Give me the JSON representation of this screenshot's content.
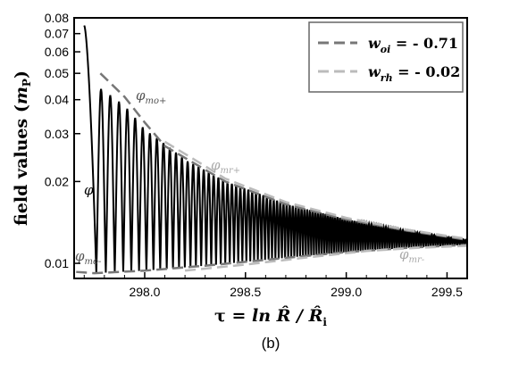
{
  "chart_data": {
    "type": "line",
    "panel_label": "(b)",
    "xlabel": "τ = ln R̂ / R̂ᵢ",
    "ylabel": "field values (mP)",
    "xlim": [
      297.65,
      299.6
    ],
    "ylim": [
      0.0088,
      0.08
    ],
    "y_scale": "log",
    "grid": false,
    "x_ticks": [
      298.0,
      298.5,
      299.0,
      299.5
    ],
    "x_tick_labels": [
      "298.0",
      "298.5",
      "299.0",
      "299.5"
    ],
    "y_ticks": [
      0.01,
      0.02,
      0.03,
      0.04,
      0.05,
      0.06,
      0.07,
      0.08
    ],
    "y_tick_labels": [
      "0.01",
      "0.02",
      "0.03",
      "0.04",
      "0.05",
      "0.06",
      "0.07",
      "0.08"
    ],
    "legend": {
      "placement": "top-right",
      "entries": [
        {
          "var": "w",
          "sub": "oi",
          "value": " = - 0.71",
          "color": "#777777"
        },
        {
          "var": "w",
          "sub": "rh",
          "value": " = - 0.02",
          "color": "#bbbbbb"
        }
      ]
    },
    "annotations": [
      {
        "sym": "φ",
        "sub": "",
        "color": "#000000"
      },
      {
        "sym": "φ",
        "sub": "mo+",
        "color": "#555555"
      },
      {
        "sym": "φ",
        "sub": "mr+",
        "color": "#aaaaaa"
      },
      {
        "sym": "φ",
        "sub": "mo-",
        "color": "#555555"
      },
      {
        "sym": "φ",
        "sub": "mr-",
        "color": "#aaaaaa"
      }
    ],
    "series": [
      {
        "name": "φ",
        "style": "oscillating",
        "color": "#000000",
        "start": [
          297.7,
          0.075
        ],
        "end_x": 299.6,
        "first_min_x": 297.76,
        "period_start": 0.047,
        "period_end": 0.012,
        "upper_envelope": [
          [
            297.78,
            0.044
          ],
          [
            297.9,
            0.038
          ],
          [
            298.0,
            0.031
          ],
          [
            298.2,
            0.024
          ],
          [
            298.4,
            0.02
          ],
          [
            298.7,
            0.0165
          ],
          [
            299.0,
            0.0145
          ],
          [
            299.3,
            0.0132
          ],
          [
            299.6,
            0.0122
          ]
        ],
        "lower_envelope": [
          [
            297.75,
            0.0092
          ],
          [
            298.0,
            0.0094
          ],
          [
            298.3,
            0.0098
          ],
          [
            298.6,
            0.0103
          ],
          [
            299.0,
            0.011
          ],
          [
            299.3,
            0.0114
          ],
          [
            299.6,
            0.0117
          ]
        ]
      },
      {
        "name": "w_oi = - 0.71",
        "style": "dashed",
        "color": "#777777",
        "points": [
          [
            297.78,
            0.05
          ],
          [
            297.9,
            0.041
          ],
          [
            298.0,
            0.033
          ],
          [
            298.1,
            0.027
          ],
          [
            298.4,
            0.02
          ],
          [
            298.7,
            0.0165
          ],
          [
            299.0,
            0.0145
          ],
          [
            299.3,
            0.0132
          ],
          [
            299.6,
            0.0122
          ]
        ],
        "lower_points": [
          [
            297.66,
            0.0093
          ],
          [
            297.75,
            0.0092
          ],
          [
            298.0,
            0.0094
          ],
          [
            298.3,
            0.0098
          ],
          [
            298.6,
            0.0103
          ],
          [
            299.0,
            0.011
          ],
          [
            299.3,
            0.0114
          ],
          [
            299.6,
            0.0117
          ]
        ]
      },
      {
        "name": "w_rh = - 0.02",
        "style": "dashed",
        "color": "#bbbbbb",
        "points": [
          [
            298.1,
            0.028
          ],
          [
            298.25,
            0.024
          ],
          [
            298.4,
            0.0205
          ],
          [
            298.7,
            0.0168
          ],
          [
            299.0,
            0.0147
          ],
          [
            299.3,
            0.0133
          ],
          [
            299.6,
            0.0123
          ]
        ],
        "lower_points": [
          [
            298.2,
            0.0094
          ],
          [
            298.5,
            0.0099
          ],
          [
            298.8,
            0.0105
          ],
          [
            299.1,
            0.0111
          ],
          [
            299.35,
            0.0114
          ],
          [
            299.6,
            0.0116
          ]
        ]
      }
    ]
  }
}
